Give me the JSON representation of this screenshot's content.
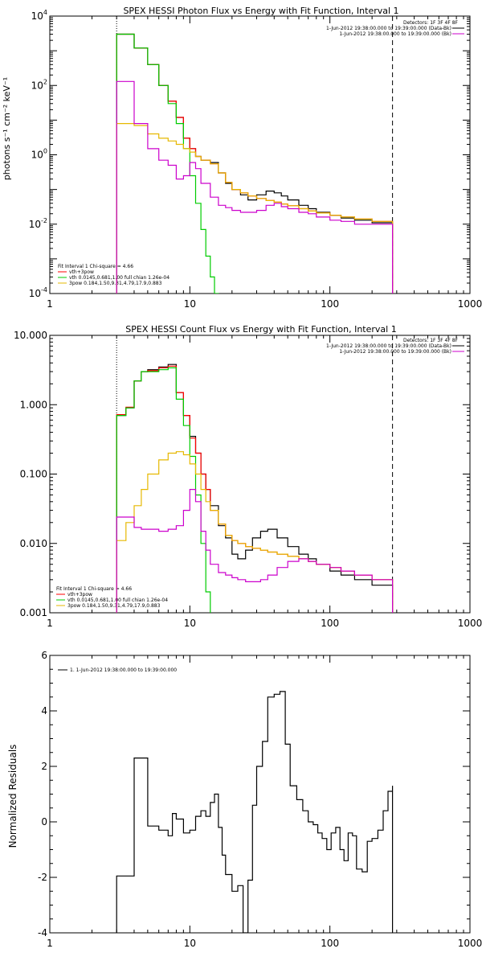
{
  "chart_data": [
    {
      "type": "line",
      "title": "SPEX HESSI Photon Flux vs Energy with Fit Function, Interval 1",
      "xlabel": "",
      "ylabel": "photons s⁻¹ cm⁻² keV⁻¹",
      "xscale": "log",
      "yscale": "log",
      "xlim": [
        1,
        1000
      ],
      "ylim": [
        0.0001,
        10000
      ],
      "xticks": [
        1,
        10,
        100,
        1000
      ],
      "xtick_labels": [
        "1",
        "10",
        "100",
        "1000"
      ],
      "yticks": [
        0.0001,
        0.01,
        1,
        100,
        10000
      ],
      "ytick_labels": [
        [
          "10",
          "-4"
        ],
        [
          "10",
          "-2"
        ],
        [
          "10",
          "0"
        ],
        [
          "10",
          "2"
        ],
        [
          "10",
          "4"
        ]
      ],
      "vlines": [
        {
          "x": 3,
          "style": "dotted"
        },
        {
          "x": 280,
          "style": "dashed"
        }
      ],
      "legend_top_right": [
        "Detectors: 1F 3F 4F 8F",
        "1-Jun-2012 19:38:00.000 to 19:39:00.000 (Data-Bk)",
        "1-Jun-2012 19:38:00.000 to 19:39:00.000 (Bk)"
      ],
      "legend_bottom_left": [
        "Fit Interval  1    Chi-square = 4.66",
        "vth+3pow",
        "vth 0.0145,0.681,1.00  full chian 1.26e-04",
        "3pow 0.184,1.50,9.31,4.79,17.9,0.883"
      ],
      "series": [
        {
          "color": "#000000",
          "x": [
            3,
            4,
            5,
            6,
            7,
            8,
            9,
            10,
            11,
            12,
            14,
            16,
            18,
            20,
            23,
            26,
            30,
            35,
            40,
            45,
            50,
            60,
            70,
            80,
            100,
            120,
            150,
            200,
            280
          ],
          "y": [
            3000,
            1200,
            400,
            100,
            35,
            12,
            3,
            1.5,
            0.9,
            0.7,
            0.6,
            0.3,
            0.15,
            0.1,
            0.07,
            0.05,
            0.07,
            0.09,
            0.08,
            0.065,
            0.05,
            0.035,
            0.028,
            0.022,
            0.018,
            0.015,
            0.013,
            0.011,
            0.009
          ]
        },
        {
          "color": "#ff0000",
          "x": [
            3,
            4,
            5,
            6,
            7,
            8,
            9,
            10,
            11,
            12,
            14,
            16,
            18,
            20,
            23,
            26,
            30,
            35,
            40,
            45,
            50,
            60,
            70,
            80,
            100,
            120,
            150,
            200,
            280
          ],
          "y": [
            3000,
            1200,
            400,
            100,
            35,
            12,
            3,
            1.5,
            0.9,
            0.7,
            0.55,
            0.3,
            0.16,
            0.1,
            0.08,
            0.065,
            0.055,
            0.048,
            0.043,
            0.038,
            0.034,
            0.028,
            0.024,
            0.021,
            0.018,
            0.016,
            0.014,
            0.012,
            0.01
          ]
        },
        {
          "color": "#00cc00",
          "x": [
            3,
            4,
            5,
            6,
            7,
            8,
            9,
            10,
            11,
            12,
            13,
            14,
            15,
            16
          ],
          "y": [
            3000,
            1200,
            400,
            100,
            30,
            8,
            1.5,
            0.25,
            0.04,
            0.007,
            0.0012,
            0.0003,
            0.0001,
            4e-05
          ]
        },
        {
          "color": "#e6b800",
          "x": [
            3,
            4,
            5,
            6,
            7,
            8,
            9,
            10,
            11,
            12,
            14,
            16,
            18,
            20,
            23,
            26,
            30,
            35,
            40,
            45,
            50,
            60,
            70,
            80,
            100,
            120,
            150,
            200,
            280
          ],
          "y": [
            8,
            7,
            4,
            3,
            2.5,
            2,
            1.5,
            1.2,
            0.9,
            0.7,
            0.55,
            0.3,
            0.16,
            0.1,
            0.08,
            0.065,
            0.055,
            0.048,
            0.043,
            0.038,
            0.034,
            0.028,
            0.024,
            0.021,
            0.018,
            0.016,
            0.014,
            0.012,
            0.01
          ]
        },
        {
          "color": "#cc00cc",
          "x": [
            3,
            4,
            5,
            6,
            7,
            8,
            9,
            10,
            11,
            12,
            14,
            16,
            18,
            20,
            23,
            26,
            30,
            35,
            40,
            45,
            50,
            60,
            70,
            80,
            100,
            120,
            150,
            200,
            280
          ],
          "y": [
            130,
            8,
            1.5,
            0.7,
            0.5,
            0.2,
            0.25,
            0.6,
            0.4,
            0.15,
            0.06,
            0.035,
            0.03,
            0.025,
            0.022,
            0.022,
            0.025,
            0.035,
            0.04,
            0.032,
            0.028,
            0.022,
            0.02,
            0.016,
            0.013,
            0.012,
            0.01,
            0.01,
            0.009
          ]
        }
      ]
    },
    {
      "type": "line",
      "title": "SPEX HESSI Count Flux vs Energy with Fit Function, Interval 1",
      "xlabel": "",
      "ylabel": "",
      "xscale": "log",
      "yscale": "log",
      "xlim": [
        1,
        1000
      ],
      "ylim": [
        0.001,
        10
      ],
      "xticks": [
        1,
        10,
        100,
        1000
      ],
      "xtick_labels": [
        "1",
        "10",
        "100",
        "1000"
      ],
      "yticks": [
        0.001,
        0.01,
        0.1,
        1,
        10
      ],
      "ytick_labels": [
        "0.001",
        "0.010",
        "0.100",
        "1.000",
        "10.000"
      ],
      "vlines": [
        {
          "x": 3,
          "style": "dotted"
        },
        {
          "x": 280,
          "style": "dashed"
        }
      ],
      "legend_top_right": [
        "Detectors: 1F 3F 4F 8F",
        "1-Jun-2012 19:38:00.000 to 19:39:00.000 (Data-Bk)",
        "1-Jun-2012 19:38:00.000 to 19:39:00.000 (Bk)"
      ],
      "legend_bottom_left": [
        "Fit Interval  1    Chi-square = 4.66",
        "vth+3pow",
        "vth 0.0145,0.681,1.00  full chian 1.26e-04",
        "3pow 0.184,1.50,9.31,4.79,17.9,0.883"
      ],
      "series": [
        {
          "color": "#000000",
          "x": [
            3,
            3.5,
            4,
            4.5,
            5,
            6,
            7,
            8,
            9,
            10,
            11,
            12,
            13,
            14,
            16,
            18,
            20,
            22,
            25,
            28,
            32,
            36,
            42,
            50,
            60,
            70,
            80,
            100,
            120,
            150,
            200,
            280
          ],
          "y": [
            0.7,
            0.9,
            2.2,
            3.0,
            3.2,
            3.5,
            3.8,
            1.5,
            0.7,
            0.35,
            0.2,
            0.1,
            0.06,
            0.035,
            0.018,
            0.012,
            0.007,
            0.006,
            0.008,
            0.012,
            0.015,
            0.016,
            0.012,
            0.009,
            0.007,
            0.006,
            0.005,
            0.004,
            0.0035,
            0.003,
            0.0025,
            0.002
          ]
        },
        {
          "color": "#ff0000",
          "x": [
            3,
            3.5,
            4,
            4.5,
            5,
            6,
            7,
            8,
            9,
            10,
            11,
            12,
            13,
            14,
            16,
            18,
            20,
            22,
            25,
            28,
            32,
            36,
            42,
            50,
            60,
            70,
            80,
            100,
            120,
            150,
            200,
            280
          ],
          "y": [
            0.72,
            0.92,
            2.2,
            3.0,
            3.1,
            3.4,
            3.6,
            1.5,
            0.7,
            0.33,
            0.2,
            0.1,
            0.06,
            0.03,
            0.019,
            0.013,
            0.011,
            0.01,
            0.009,
            0.0085,
            0.008,
            0.0075,
            0.007,
            0.0065,
            0.006,
            0.0055,
            0.005,
            0.0045,
            0.004,
            0.0035,
            0.003,
            0.0024
          ]
        },
        {
          "color": "#00cc00",
          "x": [
            3,
            3.5,
            4,
            4.5,
            5,
            6,
            7,
            8,
            9,
            10,
            11,
            12,
            13,
            14
          ],
          "y": [
            0.7,
            0.9,
            2.2,
            3.0,
            3.0,
            3.2,
            3.4,
            1.2,
            0.5,
            0.18,
            0.05,
            0.01,
            0.002,
            0.0008
          ]
        },
        {
          "color": "#e6b800",
          "x": [
            3,
            3.5,
            4,
            4.5,
            5,
            6,
            7,
            8,
            9,
            10,
            11,
            12,
            13,
            14,
            16,
            18,
            20,
            22,
            25,
            28,
            32,
            36,
            42,
            50,
            60,
            70,
            80,
            100,
            120,
            150,
            200,
            280
          ],
          "y": [
            0.011,
            0.02,
            0.035,
            0.06,
            0.1,
            0.16,
            0.2,
            0.21,
            0.19,
            0.14,
            0.1,
            0.06,
            0.04,
            0.03,
            0.019,
            0.013,
            0.011,
            0.01,
            0.009,
            0.0085,
            0.008,
            0.0075,
            0.007,
            0.0065,
            0.006,
            0.0055,
            0.005,
            0.0045,
            0.004,
            0.0035,
            0.003,
            0.0024
          ]
        },
        {
          "color": "#cc00cc",
          "x": [
            3,
            3.5,
            4,
            4.5,
            5,
            6,
            7,
            8,
            9,
            10,
            11,
            12,
            13,
            14,
            16,
            18,
            20,
            22,
            25,
            28,
            32,
            36,
            42,
            50,
            60,
            70,
            80,
            100,
            120,
            150,
            200,
            280
          ],
          "y": [
            0.024,
            0.024,
            0.017,
            0.016,
            0.016,
            0.015,
            0.016,
            0.018,
            0.03,
            0.06,
            0.04,
            0.015,
            0.008,
            0.005,
            0.0038,
            0.0035,
            0.0032,
            0.003,
            0.0028,
            0.0028,
            0.003,
            0.0035,
            0.0045,
            0.0055,
            0.006,
            0.0055,
            0.005,
            0.0045,
            0.004,
            0.0035,
            0.003,
            0.0022
          ]
        }
      ]
    },
    {
      "type": "line",
      "title": "",
      "xlabel": "",
      "ylabel": "Normalized Residuals",
      "xscale": "log",
      "yscale": "linear",
      "xlim": [
        1,
        1000
      ],
      "ylim": [
        -4,
        6
      ],
      "xticks": [
        1,
        10,
        100,
        1000
      ],
      "xtick_labels": [
        "1",
        "10",
        "100",
        "1000"
      ],
      "yticks": [
        -4,
        -2,
        0,
        2,
        4,
        6
      ],
      "ytick_labels": [
        "-4",
        "-2",
        "0",
        "2",
        "4",
        "6"
      ],
      "legend_top_left": [
        "1.  1-Jun-2012 19:38:00.000 to 19:39:00.000"
      ],
      "series": [
        {
          "color": "#000000",
          "x": [
            3,
            4,
            5,
            6,
            7,
            7.5,
            8,
            9,
            10,
            11,
            12,
            13,
            14,
            15,
            16,
            17,
            18,
            20,
            22,
            24,
            26,
            28,
            30,
            33,
            36,
            40,
            44,
            48,
            52,
            58,
            64,
            70,
            76,
            82,
            88,
            95,
            102,
            110,
            118,
            126,
            135,
            145,
            155,
            170,
            185,
            200,
            220,
            240,
            260,
            280
          ],
          "y": [
            -1.95,
            2.3,
            -0.15,
            -0.3,
            -0.5,
            0.3,
            0.1,
            -0.4,
            -0.3,
            0.2,
            0.4,
            0.2,
            0.7,
            1.0,
            -0.2,
            -1.2,
            -1.9,
            -2.5,
            -2.3,
            -4.0,
            -2.1,
            0.6,
            2.0,
            2.9,
            4.5,
            4.6,
            4.7,
            2.8,
            1.3,
            0.8,
            0.4,
            0.0,
            -0.1,
            -0.4,
            -0.6,
            -1.0,
            -0.4,
            -0.2,
            -1.0,
            -1.4,
            -0.4,
            -0.5,
            -1.7,
            -1.8,
            -0.7,
            -0.6,
            -0.3,
            0.4,
            1.1,
            1.3
          ]
        }
      ]
    }
  ]
}
